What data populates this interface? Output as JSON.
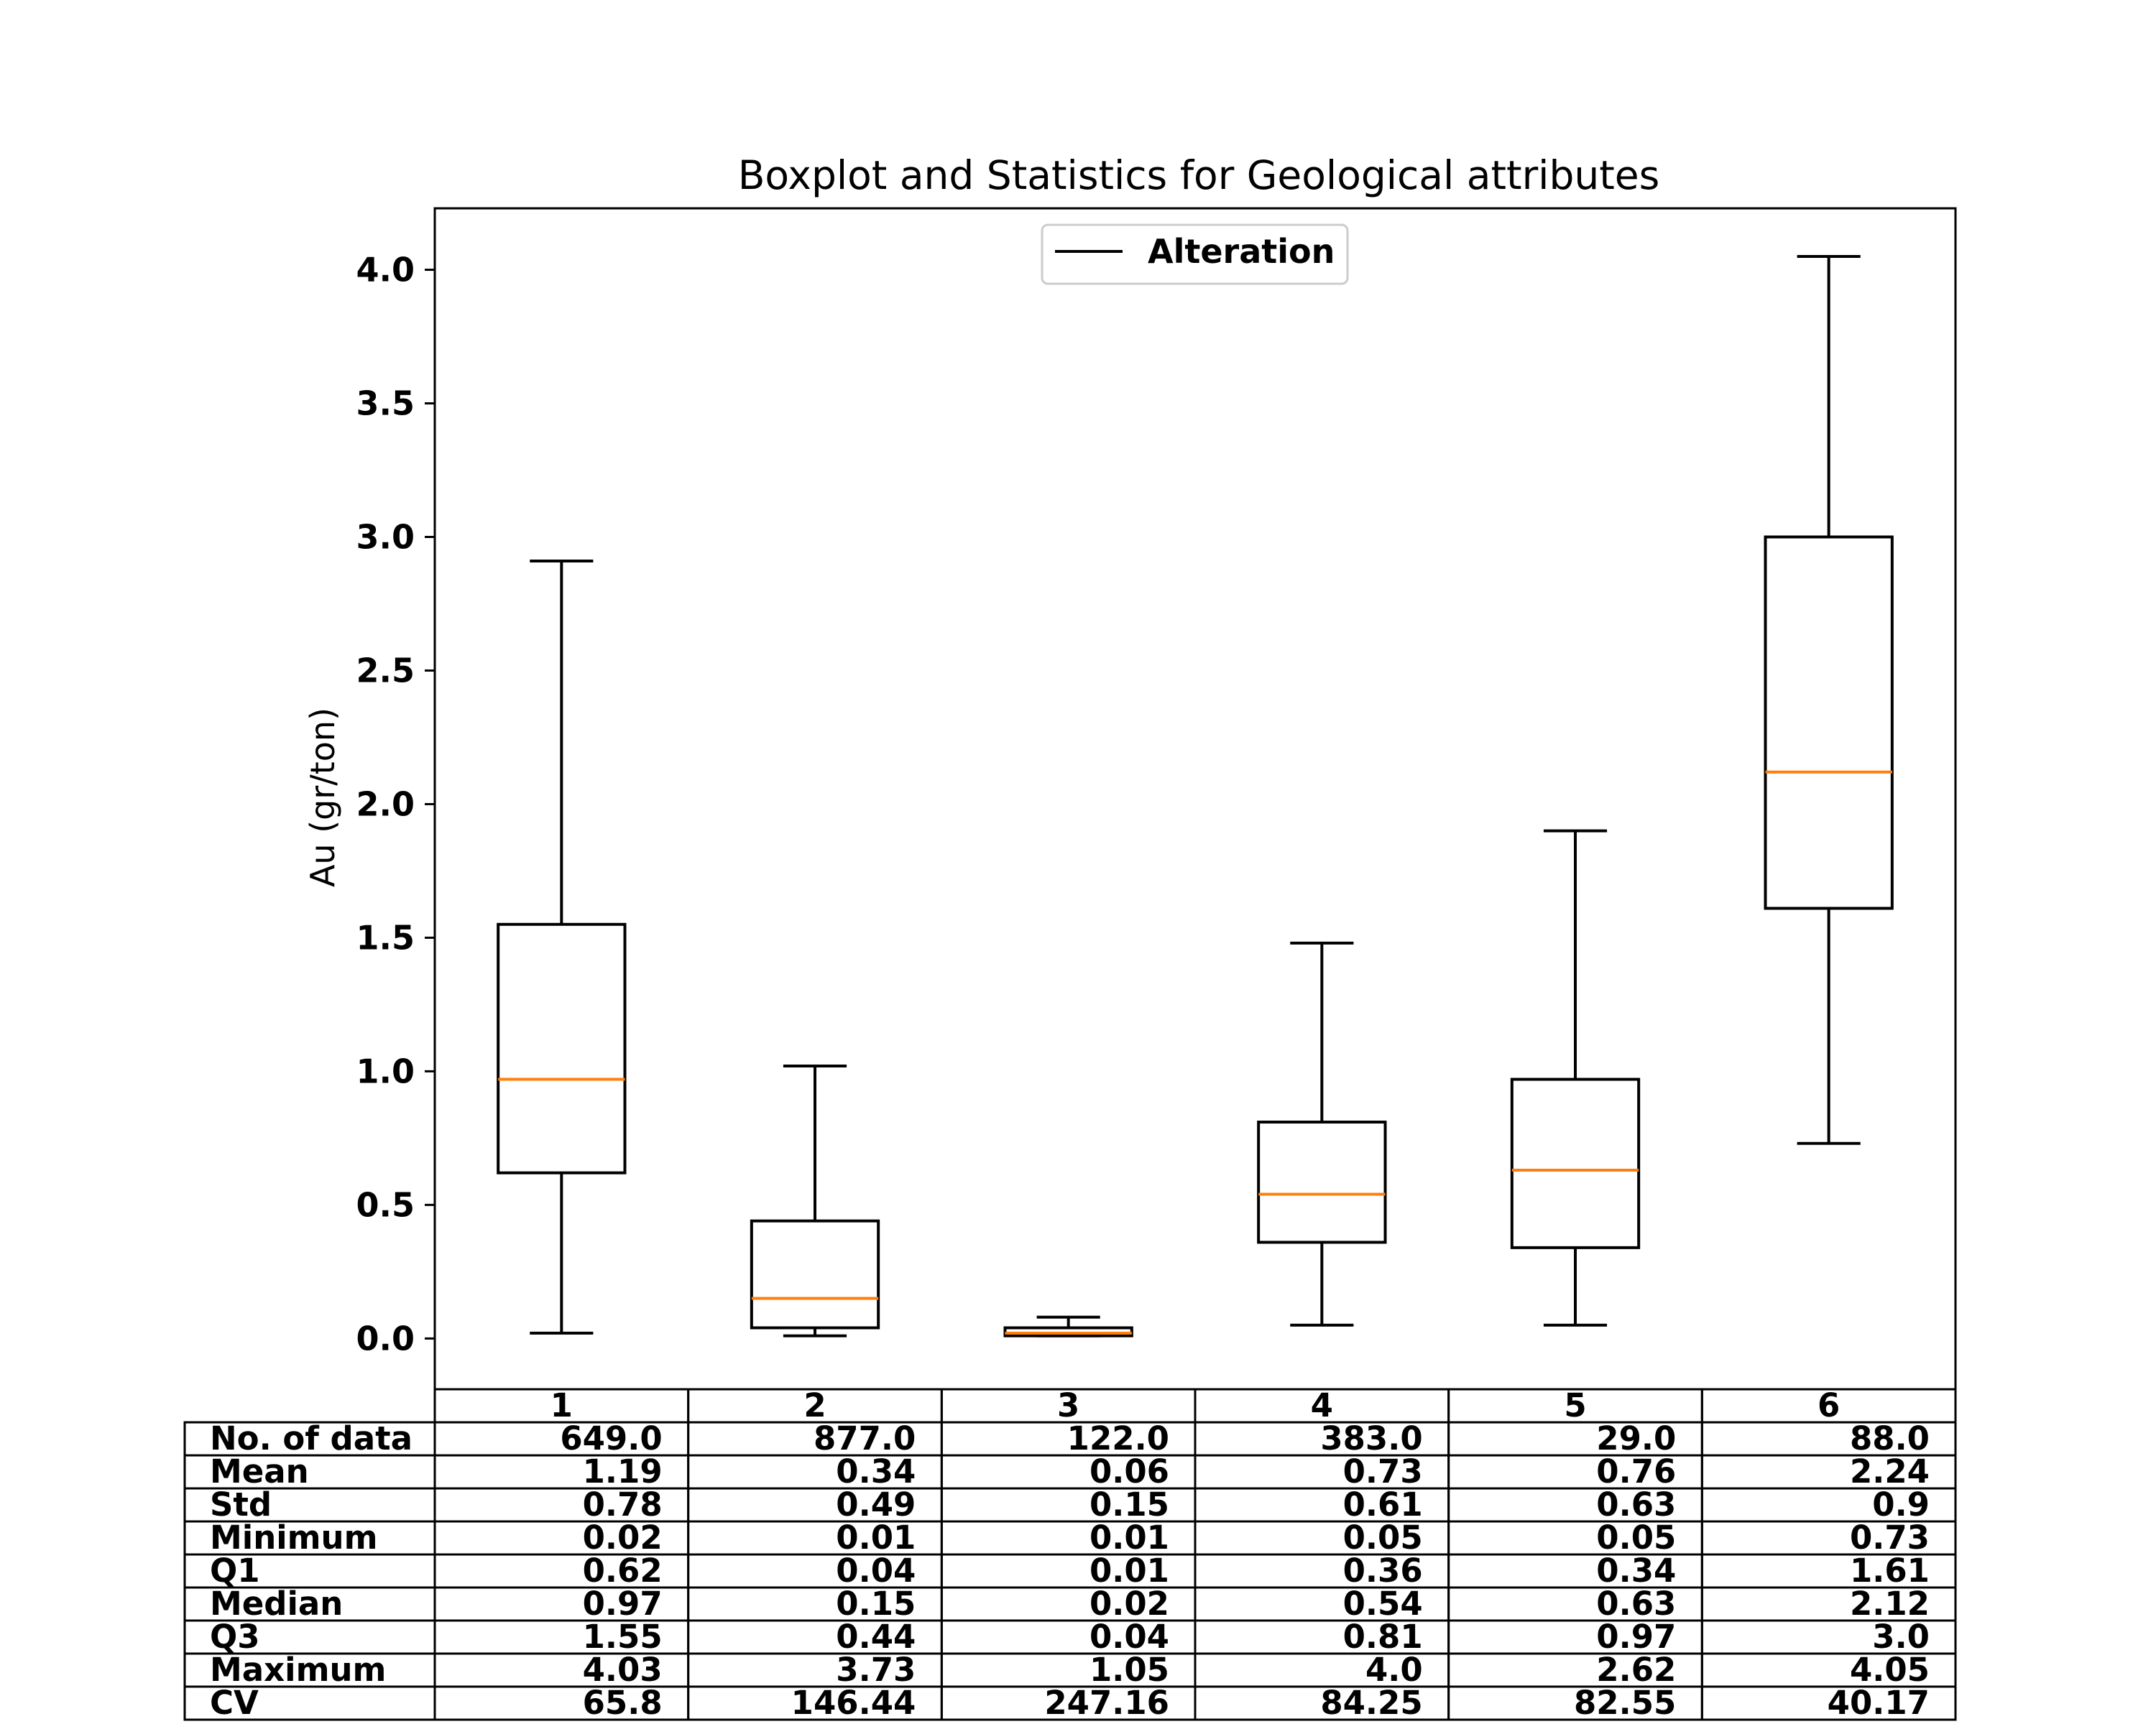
{
  "chart_data": {
    "type": "box",
    "title": "Boxplot and Statistics for Geological attributes",
    "ylabel": "Au (gr/ton)",
    "ylim": [
      -0.19,
      4.23
    ],
    "yticks": [
      "0.0",
      "0.5",
      "1.0",
      "1.5",
      "2.0",
      "2.5",
      "3.0",
      "3.5",
      "4.0"
    ],
    "ytick_values": [
      0,
      0.5,
      1.0,
      1.5,
      2.0,
      2.5,
      3.0,
      3.5,
      4.0
    ],
    "categories": [
      "1",
      "2",
      "3",
      "4",
      "5",
      "6"
    ],
    "legend": {
      "label": "Alteration",
      "placement": "upper center"
    },
    "colors": {
      "box": "#000000",
      "median": "#ff7f0e"
    },
    "boxes": [
      {
        "whisker_low": 0.02,
        "q1": 0.62,
        "median": 0.97,
        "q3": 1.55,
        "whisker_high": 2.91
      },
      {
        "whisker_low": 0.01,
        "q1": 0.04,
        "median": 0.15,
        "q3": 0.44,
        "whisker_high": 1.02
      },
      {
        "whisker_low": 0.01,
        "q1": 0.01,
        "median": 0.02,
        "q3": 0.04,
        "whisker_high": 0.08
      },
      {
        "whisker_low": 0.05,
        "q1": 0.36,
        "median": 0.54,
        "q3": 0.81,
        "whisker_high": 1.48
      },
      {
        "whisker_low": 0.05,
        "q1": 0.34,
        "median": 0.63,
        "q3": 0.97,
        "whisker_high": 1.9
      },
      {
        "whisker_low": 0.73,
        "q1": 1.61,
        "median": 2.12,
        "q3": 3.0,
        "whisker_high": 4.05
      }
    ],
    "table": {
      "rows": [
        {
          "label": "No. of data",
          "values": [
            "649.0",
            "877.0",
            "122.0",
            "383.0",
            "29.0",
            "88.0"
          ]
        },
        {
          "label": "Mean",
          "values": [
            "1.19",
            "0.34",
            "0.06",
            "0.73",
            "0.76",
            "2.24"
          ]
        },
        {
          "label": "Std",
          "values": [
            "0.78",
            "0.49",
            "0.15",
            "0.61",
            "0.63",
            "0.9"
          ]
        },
        {
          "label": "Minimum",
          "values": [
            "0.02",
            "0.01",
            "0.01",
            "0.05",
            "0.05",
            "0.73"
          ]
        },
        {
          "label": "Q1",
          "values": [
            "0.62",
            "0.04",
            "0.01",
            "0.36",
            "0.34",
            "1.61"
          ]
        },
        {
          "label": "Median",
          "values": [
            "0.97",
            "0.15",
            "0.02",
            "0.54",
            "0.63",
            "2.12"
          ]
        },
        {
          "label": "Q3",
          "values": [
            "1.55",
            "0.44",
            "0.04",
            "0.81",
            "0.97",
            "3.0"
          ]
        },
        {
          "label": "Maximum",
          "values": [
            "4.03",
            "3.73",
            "1.05",
            "4.0",
            "2.62",
            "4.05"
          ]
        },
        {
          "label": "CV",
          "values": [
            "65.8",
            "146.44",
            "247.16",
            "84.25",
            "82.55",
            "40.17"
          ]
        }
      ]
    }
  }
}
